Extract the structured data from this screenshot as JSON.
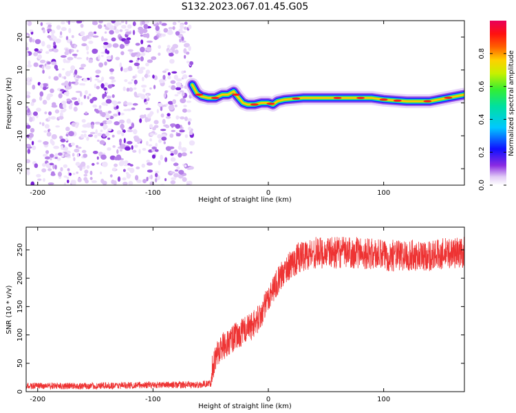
{
  "figure_title": "S132.2023.067.01.45.G05",
  "chart_data": [
    {
      "type": "heatmap",
      "title": "",
      "xlabel": "Height of straight line (km)",
      "ylabel": "Frequency (Hz)",
      "xlim": [
        -210,
        170
      ],
      "ylim": [
        -25,
        25
      ],
      "xticks": [
        -200,
        -100,
        0,
        100
      ],
      "yticks": [
        -20,
        -10,
        0,
        10,
        20
      ],
      "noise_region_x": [
        -210,
        -66
      ],
      "signal_trace": {
        "x": [
          -66,
          -62,
          -58,
          -52,
          -46,
          -40,
          -35,
          -30,
          -27,
          -22,
          -18,
          -12,
          -6,
          0,
          4,
          8,
          14,
          30,
          50,
          70,
          90,
          100,
          120,
          140,
          155,
          170
        ],
        "y": [
          5.5,
          3.0,
          2.0,
          1.5,
          1.5,
          2.5,
          2.5,
          3.5,
          2.0,
          0.0,
          -0.5,
          -0.5,
          0.0,
          0.0,
          -0.5,
          0.5,
          1.0,
          1.5,
          1.5,
          1.5,
          1.5,
          1.0,
          0.5,
          0.5,
          1.5,
          2.5
        ]
      },
      "colorbar": {
        "label": "Normalized spectral amplitude",
        "range": [
          0,
          1
        ],
        "ticks": [
          0.0,
          0.2,
          0.4,
          0.6,
          0.8
        ]
      }
    },
    {
      "type": "line",
      "title": "",
      "xlabel": "Height of straight line (km)",
      "ylabel": "SNR (10 * v/v)",
      "xlim": [
        -210,
        170
      ],
      "ylim": [
        0,
        290
      ],
      "xticks": [
        -200,
        -100,
        0,
        100
      ],
      "yticks": [
        0,
        50,
        100,
        150,
        200,
        250
      ],
      "series": [
        {
          "name": "SNR",
          "color": "#ee3333",
          "x": [
            -210,
            -150,
            -100,
            -60,
            -50,
            -49,
            -45,
            -40,
            -35,
            -30,
            -25,
            -20,
            -15,
            -10,
            -5,
            0,
            5,
            10,
            15,
            20,
            25,
            30,
            40,
            50,
            60,
            80,
            100,
            120,
            140,
            160,
            170
          ],
          "y": [
            10,
            10,
            12,
            12,
            15,
            40,
            65,
            80,
            85,
            95,
            100,
            110,
            115,
            125,
            140,
            165,
            185,
            200,
            215,
            225,
            235,
            240,
            245,
            245,
            245,
            245,
            240,
            240,
            240,
            245,
            245
          ]
        }
      ]
    }
  ]
}
